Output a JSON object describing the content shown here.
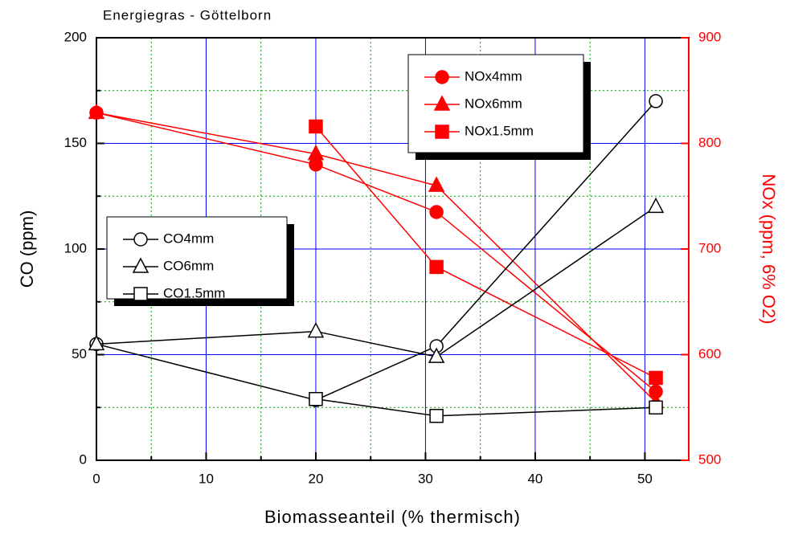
{
  "chart_data": {
    "type": "line",
    "title": "Energiegras - Göttelborn",
    "x_label": "Biomasseanteil (% thermisch)",
    "y_label": "CO (ppm)",
    "y2_label": "NOx (ppm, 6% O2)",
    "xlim": [
      0,
      54
    ],
    "xticks": [
      0,
      10,
      20,
      30,
      40,
      50
    ],
    "xminor": [
      5,
      15,
      25,
      35,
      45
    ],
    "ylim": [
      0,
      200
    ],
    "yticks": [
      0,
      50,
      100,
      150,
      200
    ],
    "yminor": [
      25,
      75,
      125,
      175
    ],
    "y2lim": [
      500,
      900
    ],
    "y2ticks": [
      500,
      600,
      700,
      800,
      900
    ],
    "y2color": "#ff0000",
    "grid": true,
    "series": [
      {
        "name": "NOx4mm",
        "color": "#ff0000",
        "marker": "circle",
        "filled": true,
        "axis": "y2",
        "x": [
          0,
          20,
          31,
          51
        ],
        "values": [
          829,
          780,
          735,
          565
        ]
      },
      {
        "name": "NOx6mm",
        "color": "#ff0000",
        "marker": "triangle",
        "filled": true,
        "axis": "y2",
        "x": [
          0,
          20,
          31,
          51
        ],
        "values": [
          829,
          790,
          760,
          555
        ]
      },
      {
        "name": "NOx1.5mm",
        "color": "#ff0000",
        "marker": "square",
        "filled": true,
        "axis": "y2",
        "x": [
          20,
          31,
          51
        ],
        "values": [
          816,
          683,
          578
        ]
      },
      {
        "name": "CO4mm",
        "color": "#000000",
        "marker": "circle",
        "filled": false,
        "axis": "y",
        "x": [
          0,
          20,
          31,
          51
        ],
        "values": [
          55,
          28.5,
          54,
          170
        ]
      },
      {
        "name": "CO6mm",
        "color": "#000000",
        "marker": "triangle",
        "filled": false,
        "axis": "y",
        "x": [
          0,
          20,
          31,
          51
        ],
        "values": [
          55,
          61,
          49,
          120
        ]
      },
      {
        "name": "CO1.5mm",
        "color": "#000000",
        "marker": "square",
        "filled": false,
        "axis": "y",
        "x": [
          20,
          31,
          51
        ],
        "values": [
          29,
          21,
          25
        ]
      }
    ]
  }
}
